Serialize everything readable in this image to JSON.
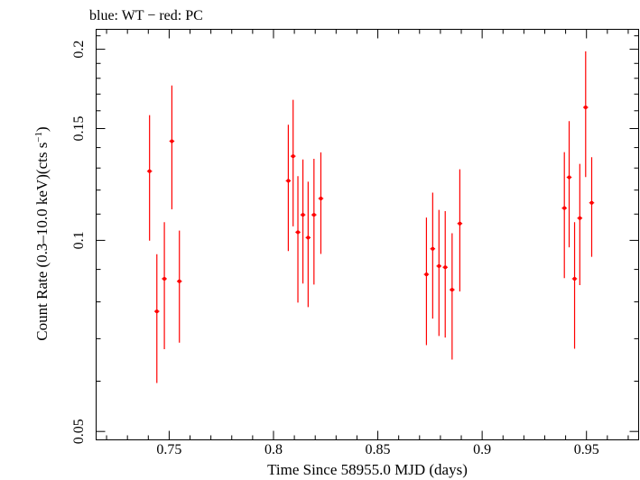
{
  "chart_data": {
    "type": "scatter",
    "title": "blue: WT − red: PC",
    "xlabel": "Time Since 58955.0 MJD (days)",
    "ylabel_main": "Count Rate (0.3–10.0 keV)(cts s",
    "ylabel_sup": "−1",
    "ylabel_close": ")",
    "xlim": [
      0.715,
      0.975
    ],
    "ylim": [
      0.0485,
      0.215
    ],
    "yscale": "log",
    "grid": false,
    "x_ticks": [
      0.75,
      0.8,
      0.85,
      0.9,
      0.95
    ],
    "x_tick_labels": [
      "0.75",
      "0.8",
      "0.85",
      "0.9",
      "0.95"
    ],
    "y_ticks": [
      0.05,
      0.1,
      0.15,
      0.2
    ],
    "y_tick_labels": [
      "0.05",
      "0.1",
      "0.15",
      "0.2"
    ],
    "series": [
      {
        "color": "#ff0000",
        "points": [
          {
            "x": 0.7406,
            "y": 0.1285,
            "xerr": 0.0012,
            "ylo": 0.0999,
            "yhi": 0.1575
          },
          {
            "x": 0.7441,
            "y": 0.0773,
            "xerr": 0.0012,
            "ylo": 0.0596,
            "yhi": 0.0951
          },
          {
            "x": 0.7477,
            "y": 0.087,
            "xerr": 0.0012,
            "ylo": 0.0674,
            "yhi": 0.1068
          },
          {
            "x": 0.7513,
            "y": 0.1433,
            "xerr": 0.0012,
            "ylo": 0.1119,
            "yhi": 0.1754
          },
          {
            "x": 0.7549,
            "y": 0.0862,
            "xerr": 0.0012,
            "ylo": 0.069,
            "yhi": 0.1036
          },
          {
            "x": 0.8071,
            "y": 0.1241,
            "xerr": 0.0012,
            "ylo": 0.0962,
            "yhi": 0.1521
          },
          {
            "x": 0.8094,
            "y": 0.1357,
            "xerr": 0.0012,
            "ylo": 0.1052,
            "yhi": 0.1665
          },
          {
            "x": 0.8117,
            "y": 0.103,
            "xerr": 0.0012,
            "ylo": 0.0798,
            "yhi": 0.1262
          },
          {
            "x": 0.8141,
            "y": 0.1097,
            "xerr": 0.0012,
            "ylo": 0.0855,
            "yhi": 0.1341
          },
          {
            "x": 0.8166,
            "y": 0.101,
            "xerr": 0.0012,
            "ylo": 0.0785,
            "yhi": 0.1237
          },
          {
            "x": 0.8194,
            "y": 0.1097,
            "xerr": 0.0012,
            "ylo": 0.0852,
            "yhi": 0.1344
          },
          {
            "x": 0.8227,
            "y": 0.1164,
            "xerr": 0.0012,
            "ylo": 0.0952,
            "yhi": 0.1376
          },
          {
            "x": 0.8733,
            "y": 0.0884,
            "xerr": 0.0012,
            "ylo": 0.0684,
            "yhi": 0.1086
          },
          {
            "x": 0.8763,
            "y": 0.097,
            "xerr": 0.0012,
            "ylo": 0.0753,
            "yhi": 0.1189
          },
          {
            "x": 0.8793,
            "y": 0.0911,
            "xerr": 0.0012,
            "ylo": 0.0707,
            "yhi": 0.1117
          },
          {
            "x": 0.8823,
            "y": 0.0907,
            "xerr": 0.0012,
            "ylo": 0.0703,
            "yhi": 0.1112
          },
          {
            "x": 0.8856,
            "y": 0.0836,
            "xerr": 0.0012,
            "ylo": 0.0649,
            "yhi": 0.1026
          },
          {
            "x": 0.8893,
            "y": 0.1063,
            "xerr": 0.0012,
            "ylo": 0.0831,
            "yhi": 0.1294
          },
          {
            "x": 0.9394,
            "y": 0.1124,
            "xerr": 0.0012,
            "ylo": 0.0872,
            "yhi": 0.1377
          },
          {
            "x": 0.9417,
            "y": 0.1257,
            "xerr": 0.0012,
            "ylo": 0.0975,
            "yhi": 0.1541
          },
          {
            "x": 0.9443,
            "y": 0.087,
            "xerr": 0.0012,
            "ylo": 0.0675,
            "yhi": 0.1068
          },
          {
            "x": 0.9468,
            "y": 0.1084,
            "xerr": 0.0012,
            "ylo": 0.085,
            "yhi": 0.132
          },
          {
            "x": 0.9496,
            "y": 0.162,
            "xerr": 0.0012,
            "ylo": 0.1258,
            "yhi": 0.1985
          },
          {
            "x": 0.9525,
            "y": 0.1146,
            "xerr": 0.0012,
            "ylo": 0.0942,
            "yhi": 0.1352
          }
        ]
      }
    ]
  }
}
